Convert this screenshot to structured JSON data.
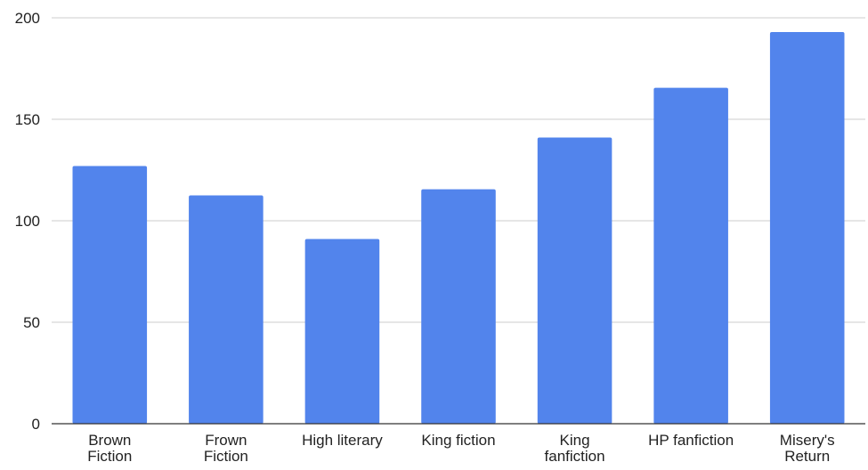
{
  "chart_data": {
    "type": "bar",
    "title": "",
    "xlabel": "",
    "ylabel": "",
    "categories": [
      [
        "Brown",
        "Fiction"
      ],
      [
        "Frown",
        "Fiction"
      ],
      [
        "High literary"
      ],
      [
        "King fiction"
      ],
      [
        "King",
        "fanfiction"
      ],
      [
        "HP fanfiction"
      ],
      [
        "Misery's",
        "Return"
      ]
    ],
    "values": [
      127,
      112.5,
      91,
      115.5,
      141,
      165.5,
      193
    ],
    "ylim": [
      0,
      200
    ],
    "yticks": [
      "0",
      "50",
      "100",
      "150",
      "200"
    ],
    "grid": true,
    "legend": "none",
    "colors": {
      "bar": "#5284ec",
      "grid": "#cccccc",
      "axis": "#333333"
    }
  }
}
